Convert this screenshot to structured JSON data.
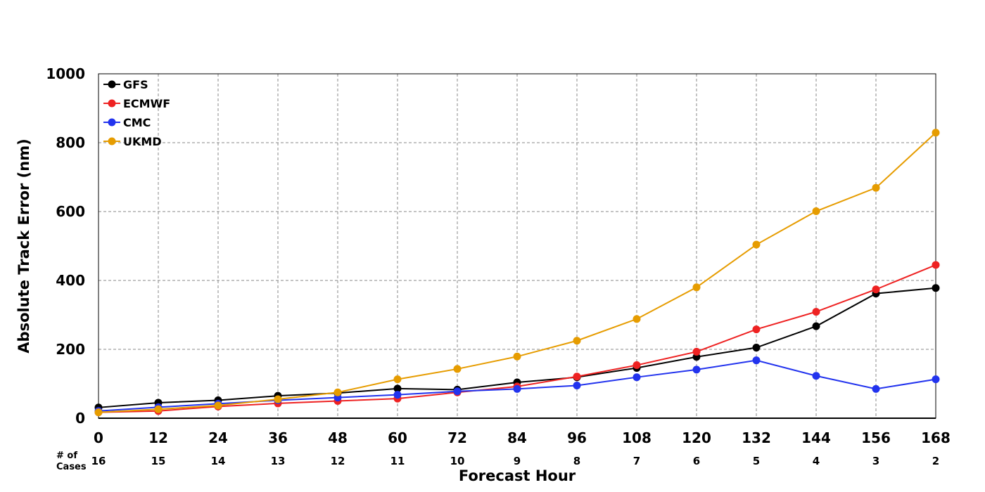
{
  "chart_data": {
    "type": "line",
    "title": "",
    "xlabel": "Forecast Hour",
    "ylabel": "Absolute Track Error (nm)",
    "x": [
      0,
      12,
      24,
      36,
      48,
      60,
      72,
      84,
      96,
      108,
      120,
      132,
      144,
      156,
      168
    ],
    "xlim": [
      0,
      168
    ],
    "ylim": [
      0,
      1000
    ],
    "yticks": [
      0,
      200,
      400,
      600,
      800,
      1000
    ],
    "grid": true,
    "legend_position": "top-left",
    "cases_label": [
      "# of",
      "Cases"
    ],
    "cases": [
      16,
      15,
      14,
      13,
      12,
      11,
      10,
      9,
      8,
      7,
      6,
      5,
      4,
      3,
      2
    ],
    "series": [
      {
        "name": "GFS",
        "color": "#000000",
        "values": [
          31,
          45,
          52,
          65,
          73,
          86,
          83,
          104,
          119,
          146,
          178,
          205,
          267,
          362,
          378
        ]
      },
      {
        "name": "ECMWF",
        "color": "#ee2222",
        "values": [
          17,
          21,
          34,
          43,
          50,
          57,
          75,
          92,
          121,
          154,
          193,
          258,
          309,
          374,
          445
        ]
      },
      {
        "name": "CMC",
        "color": "#2233ee",
        "values": [
          21,
          32,
          42,
          52,
          60,
          68,
          78,
          85,
          95,
          119,
          141,
          168,
          123,
          85,
          113
        ]
      },
      {
        "name": "UKMD",
        "color": "#e69c00",
        "values": [
          17,
          26,
          37,
          55,
          75,
          113,
          143,
          179,
          225,
          288,
          380,
          504,
          601,
          669,
          829
        ]
      }
    ]
  }
}
